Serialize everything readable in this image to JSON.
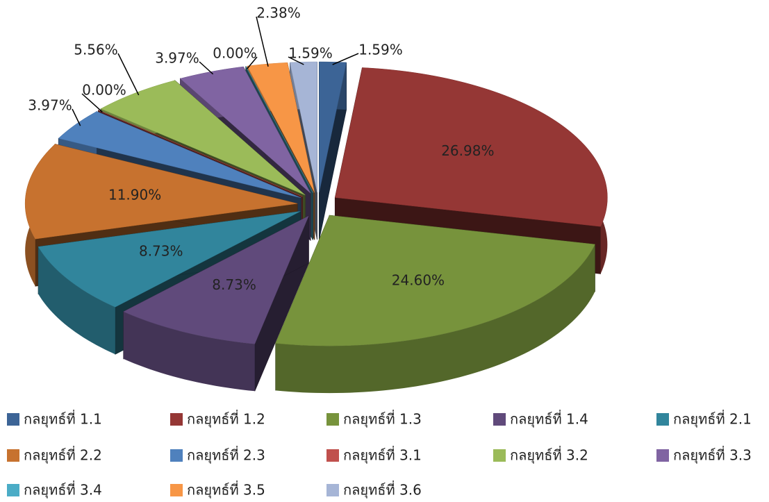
{
  "chart_data": {
    "type": "pie3d",
    "categories": [
      "กลยุทธ์ที่ 1.1",
      "กลยุทธ์ที่ 1.2",
      "กลยุทธ์ที่ 1.3",
      "กลยุทธ์ที่ 1.4",
      "กลยุทธ์ที่ 2.1",
      "กลยุทธ์ที่ 2.2",
      "กลยุทธ์ที่ 2.3",
      "กลยุทธ์ที่ 3.1",
      "กลยุทธ์ที่ 3.2",
      "กลยุทธ์ที่ 3.3",
      "กลยุทธ์ที่ 3.4",
      "กลยุทธ์ที่ 3.5",
      "กลยุทธ์ที่ 3.6"
    ],
    "values": [
      1.59,
      26.98,
      24.6,
      8.73,
      8.73,
      11.9,
      3.97,
      0.0,
      5.56,
      3.97,
      0.0,
      2.38,
      1.59
    ],
    "value_labels": [
      "1.59%",
      "26.98%",
      "24.60%",
      "8.73%",
      "8.73%",
      "11.90%",
      "3.97%",
      "0.00%",
      "5.56%",
      "3.97%",
      "0.00%",
      "2.38%",
      "1.59%"
    ],
    "colors": [
      "#3c6496",
      "#953735",
      "#77933c",
      "#604a7b",
      "#31859c",
      "#c7722f",
      "#4f81bd",
      "#c0504d",
      "#9bbb59",
      "#8064a2",
      "#4bacc6",
      "#f79646",
      "#a6b5d6"
    ],
    "legend": "bottom"
  }
}
